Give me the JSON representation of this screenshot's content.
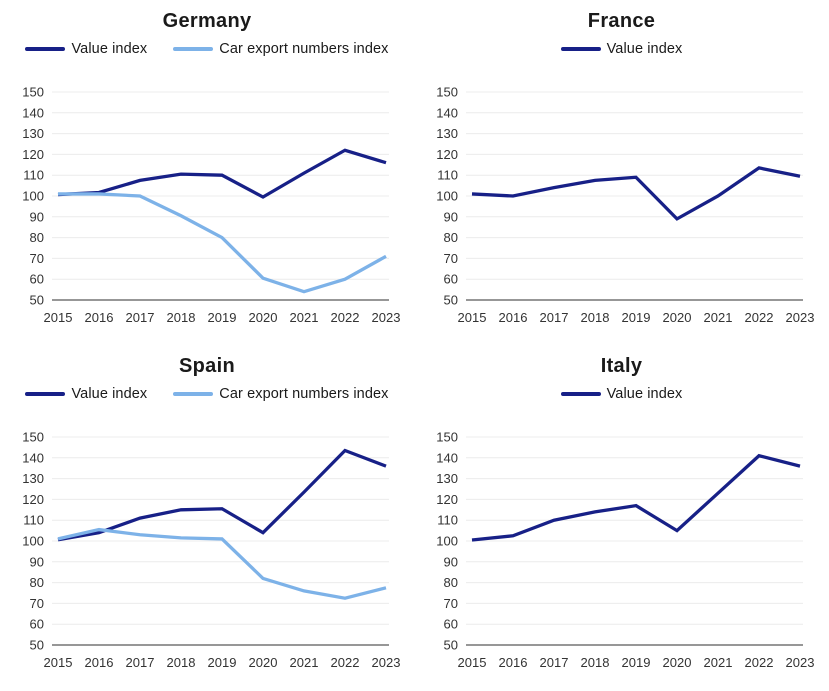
{
  "colors": {
    "value_index": "#172087",
    "car_export": "#7DB2E8",
    "gridline": "#ececec",
    "axis_line": "#595959",
    "tick_text": "#333333",
    "title_text": "#1a1a1a",
    "background": "#ffffff"
  },
  "chart_data": [
    {
      "type": "line",
      "title": "Germany",
      "x": [
        "2015",
        "2016",
        "2017",
        "2018",
        "2019",
        "2020",
        "2021",
        "2022",
        "2023"
      ],
      "ylim": [
        50,
        150
      ],
      "y_ticks": [
        50,
        60,
        70,
        80,
        90,
        100,
        110,
        120,
        130,
        140,
        150
      ],
      "grid": true,
      "legend_position": "top",
      "series": [
        {
          "name": "Value index",
          "color_key": "value_index",
          "values": [
            100.7,
            101.7,
            107.5,
            110.5,
            110,
            99.5,
            111,
            122,
            116
          ]
        },
        {
          "name": "Car export numbers index",
          "color_key": "car_export",
          "values": [
            101,
            101,
            100,
            90.5,
            80,
            60.5,
            54,
            60,
            71
          ]
        }
      ]
    },
    {
      "type": "line",
      "title": "France",
      "x": [
        "2015",
        "2016",
        "2017",
        "2018",
        "2019",
        "2020",
        "2021",
        "2022",
        "2023"
      ],
      "ylim": [
        50,
        150
      ],
      "y_ticks": [
        50,
        60,
        70,
        80,
        90,
        100,
        110,
        120,
        130,
        140,
        150
      ],
      "grid": true,
      "legend_position": "top",
      "series": [
        {
          "name": "Value index",
          "color_key": "value_index",
          "values": [
            101,
            100,
            104,
            107.5,
            109,
            89,
            100,
            113.5,
            109.5
          ]
        }
      ]
    },
    {
      "type": "line",
      "title": "Spain",
      "x": [
        "2015",
        "2016",
        "2017",
        "2018",
        "2019",
        "2020",
        "2021",
        "2022",
        "2023"
      ],
      "ylim": [
        50,
        150
      ],
      "y_ticks": [
        50,
        60,
        70,
        80,
        90,
        100,
        110,
        120,
        130,
        140,
        150
      ],
      "grid": true,
      "legend_position": "top",
      "series": [
        {
          "name": "Value index",
          "color_key": "value_index",
          "values": [
            100.6,
            104,
            111,
            115,
            115.5,
            104,
            123.5,
            143.5,
            136
          ]
        },
        {
          "name": "Car export numbers index",
          "color_key": "car_export",
          "values": [
            101,
            105.5,
            103,
            101.5,
            101,
            82,
            76,
            72.5,
            77.5
          ]
        }
      ]
    },
    {
      "type": "line",
      "title": "Italy",
      "x": [
        "2015",
        "2016",
        "2017",
        "2018",
        "2019",
        "2020",
        "2021",
        "2022",
        "2023"
      ],
      "ylim": [
        50,
        150
      ],
      "y_ticks": [
        50,
        60,
        70,
        80,
        90,
        100,
        110,
        120,
        130,
        140,
        150
      ],
      "grid": true,
      "legend_position": "top",
      "series": [
        {
          "name": "Value index",
          "color_key": "value_index",
          "values": [
            100.5,
            102.5,
            110,
            114,
            117,
            105,
            123,
            141,
            136
          ]
        }
      ]
    }
  ]
}
